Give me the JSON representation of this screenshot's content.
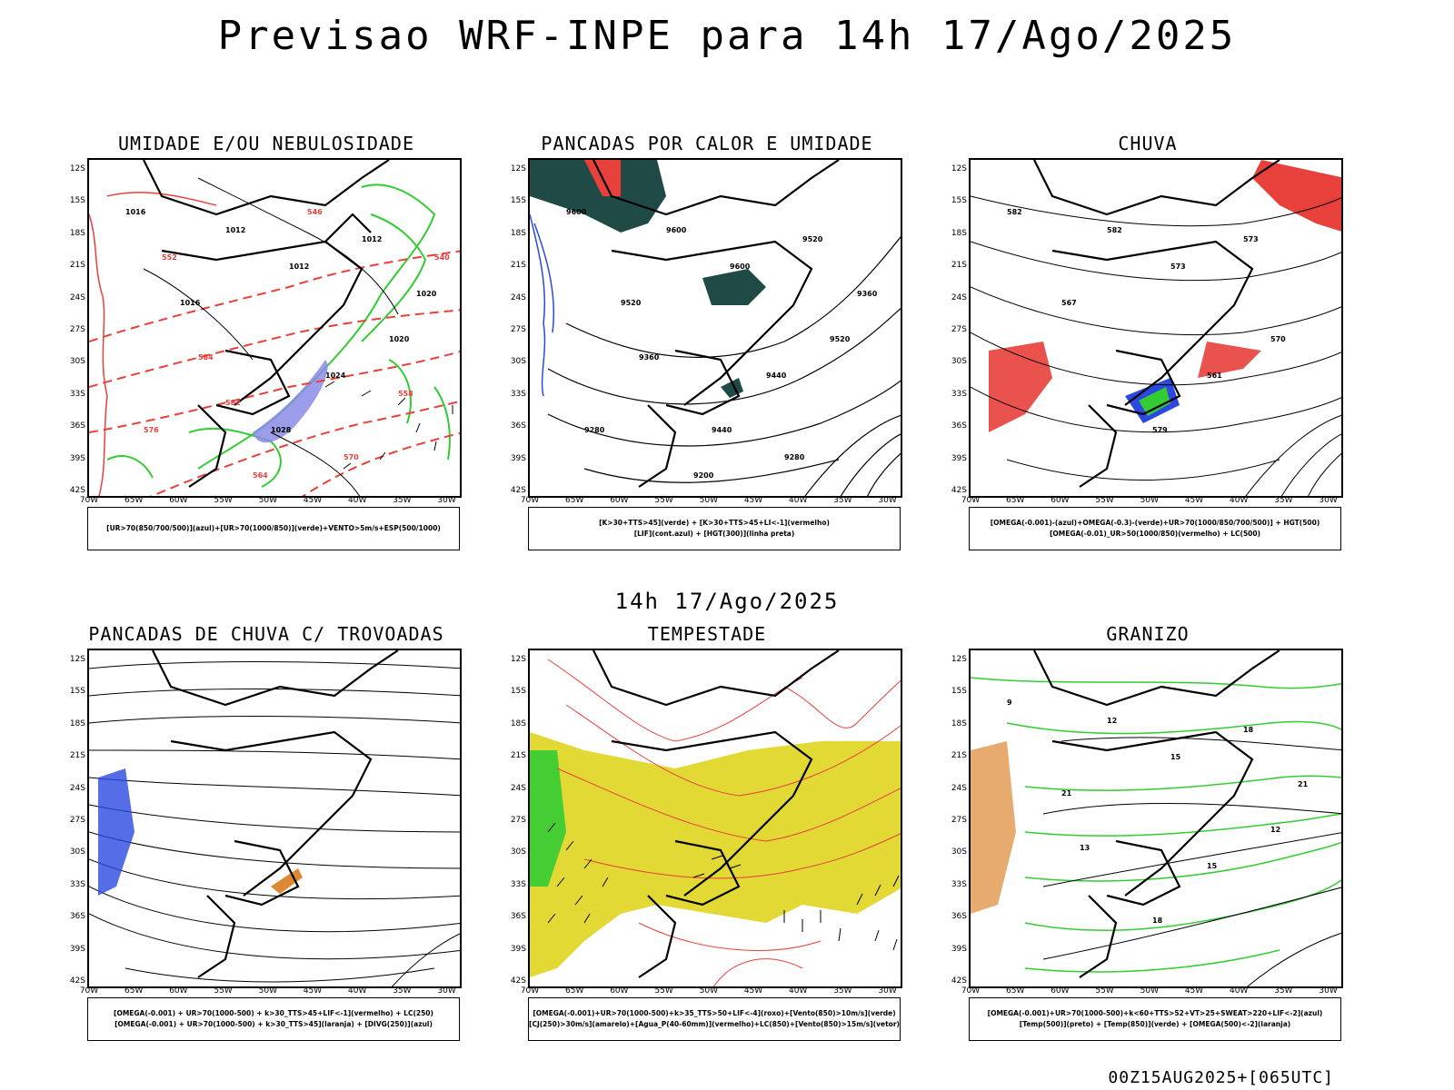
{
  "main_title": "Previsao WRF-INPE  para 14h 17/Ago/2025",
  "mid_title": "14h 17/Ago/2025",
  "footer": "00Z15AUG2025+[065UTC]",
  "lat_ticks": [
    "12S",
    "15S",
    "18S",
    "21S",
    "24S",
    "27S",
    "30S",
    "33S",
    "36S",
    "39S",
    "42S"
  ],
  "lon_ticks": [
    "70W",
    "65W",
    "60W",
    "55W",
    "50W",
    "45W",
    "40W",
    "35W",
    "30W"
  ],
  "panels": [
    {
      "title": "UMIDADE E/OU NEBULOSIDADE",
      "legend": [
        "[UR>70(850/700/500)](azul)+[UR>70(1000/850)](verde)+VENTO>5m/s+ESP(500/1000)"
      ],
      "contour_labels": [
        "1016",
        "1012",
        "1012",
        "1012",
        "1016",
        "1020",
        "1024",
        "1028",
        "1020",
        "584",
        "576",
        "570",
        "564",
        "558",
        "552",
        "546",
        "540",
        "582"
      ]
    },
    {
      "title": "PANCADAS POR CALOR E UMIDADE",
      "legend": [
        "[K>30+TTS>45](verde) + [K>30+TTS>45+LI<-1](vermelho)",
        "[LIF](cont.azul) + [HGT(300)](linha preta)"
      ],
      "contour_labels": [
        "9600",
        "9600",
        "9600",
        "9520",
        "9520",
        "9520",
        "9440",
        "9440",
        "9360",
        "9360",
        "9280",
        "9280",
        "9200"
      ]
    },
    {
      "title": "CHUVA",
      "legend": [
        "[OMEGA(-0.001)-(azul)+OMEGA(-0.3)-(verde)+UR>70(1000/850/700/500)] + HGT(500)",
        "[OMEGA(-0.01)_UR>50(1000/850)(vermelho) + LC(500)"
      ],
      "contour_labels": [
        "582",
        "582",
        "573",
        "573",
        "567",
        "570",
        "561",
        "579"
      ]
    },
    {
      "title": "PANCADAS DE CHUVA C/ TROVOADAS",
      "legend": [
        "[OMEGA(-0.001) + UR>70(1000-500) + k>30_TTS>45+LIF<-1](vermelho) + LC(250)",
        "[OMEGA(-0.001) + UR>70(1000-500) + k>30_TTS>45](laranja) + [DIVG(250)](azul)"
      ],
      "contour_labels": []
    },
    {
      "title": "TEMPESTADE",
      "legend": [
        "[OMEGA(-0.001)+UR>70(1000-500)+k>35_TTS>50+LIF<-4](roxo)+[Vento(850)>10m/s](verde)",
        "[CJ(250)>30m/s](amarelo)+[Agua_P(40-60mm)](vermelho)+LC(850)+[Vento(850)>15m/s](vetor)"
      ],
      "contour_labels": []
    },
    {
      "title": "GRANIZO",
      "legend": [
        "[OMEGA(-0.001)+UR>70(1000-500)+k<60+TTS>52+VT>25+SWEAT>220+LIF<-2](azul)",
        "[Temp(500)](preto) + [Temp(850)](verde) + [OMEGA(500)<-2](laranja)"
      ],
      "contour_labels": [
        "9",
        "12",
        "15",
        "18",
        "21",
        "12",
        "15",
        "18",
        "21",
        "13"
      ]
    }
  ],
  "colors": {
    "black": "#000000",
    "red": "#e8403a",
    "green": "#33cc33",
    "blue": "#2b48e0",
    "darkteal": "#1f4a45",
    "yellow": "#e2d935",
    "orange": "#dd8833",
    "lavender": "#8a8ce8"
  }
}
